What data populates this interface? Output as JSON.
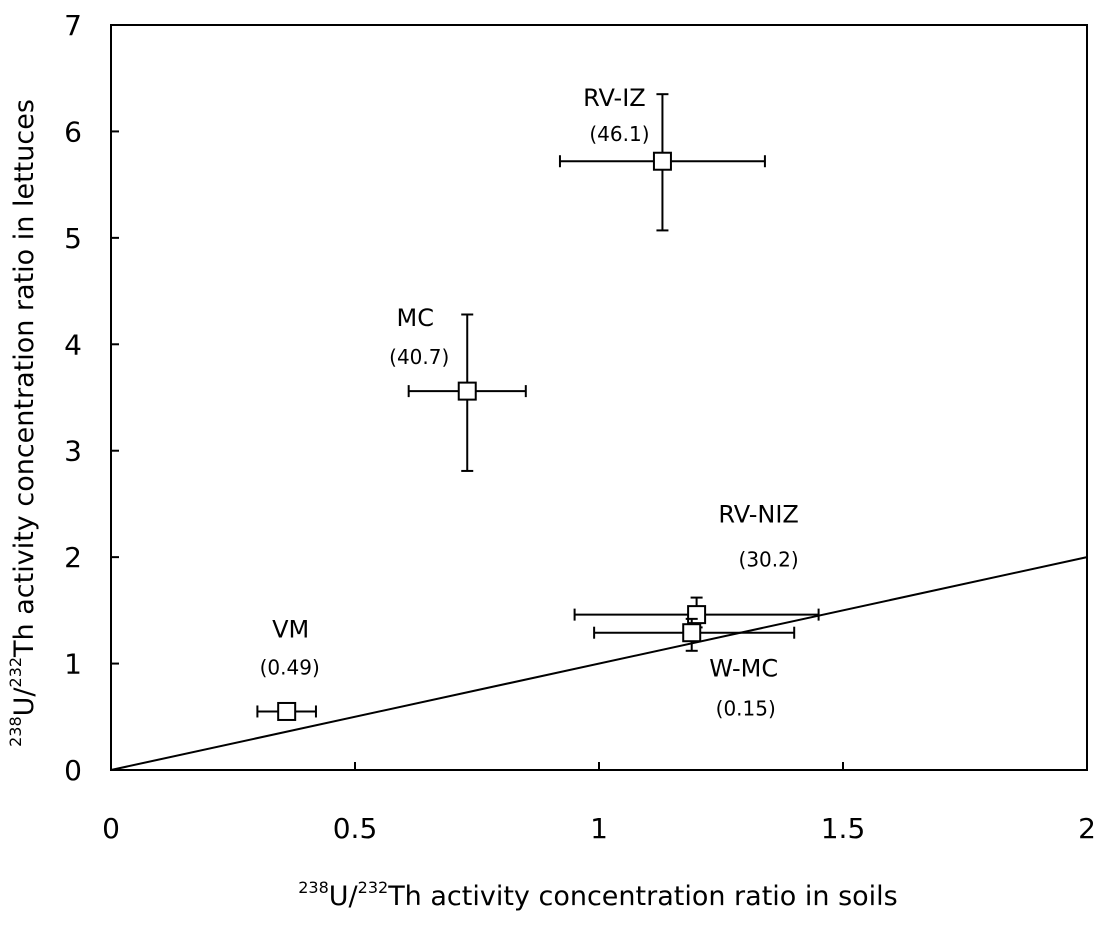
{
  "chart_data": {
    "type": "scatter",
    "title": "",
    "xlabel": {
      "iso1": "238",
      "el1": "U/",
      "iso2": "232",
      "rest": "Th activity concentration ratio in soils"
    },
    "ylabel": {
      "iso1": "238",
      "el1": "U/",
      "iso2": "232",
      "rest": "Th activity concentration ratio in lettuces"
    },
    "xlim": [
      0,
      2
    ],
    "ylim": [
      0,
      7
    ],
    "x_ticks": [
      "0",
      "0.5",
      "1",
      "1.5",
      "2"
    ],
    "y_ticks": [
      "0",
      "1",
      "2",
      "3",
      "4",
      "5",
      "6",
      "7"
    ],
    "grid": false,
    "reference_line": {
      "slope": 1,
      "intercept": 0,
      "label": ""
    },
    "points": [
      {
        "label": "RV-IZ",
        "value_label": "(46.1)",
        "x": 1.13,
        "y": 5.72,
        "x_err_low": 0.21,
        "x_err_high": 0.21,
        "y_err_low": 0.65,
        "y_err_high": 0.63
      },
      {
        "label": "MC",
        "value_label": "(40.7)",
        "x": 0.73,
        "y": 3.56,
        "x_err_low": 0.12,
        "x_err_high": 0.12,
        "y_err_low": 0.75,
        "y_err_high": 0.72
      },
      {
        "label": "RV-NIZ",
        "value_label": "(30.2)",
        "x": 1.2,
        "y": 1.46,
        "x_err_low": 0.25,
        "x_err_high": 0.25,
        "y_err_low": 0.12,
        "y_err_high": 0.16
      },
      {
        "label": "W-MC",
        "value_label": "(0.15)",
        "x": 1.19,
        "y": 1.29,
        "x_err_low": 0.2,
        "x_err_high": 0.21,
        "y_err_low": 0.17,
        "y_err_high": 0.13
      },
      {
        "label": "VM",
        "value_label": "(0.49)",
        "x": 0.36,
        "y": 0.55,
        "x_err_low": 0.06,
        "x_err_high": 0.06,
        "y_err_low": 0.0,
        "y_err_high": 0.0
      }
    ]
  }
}
